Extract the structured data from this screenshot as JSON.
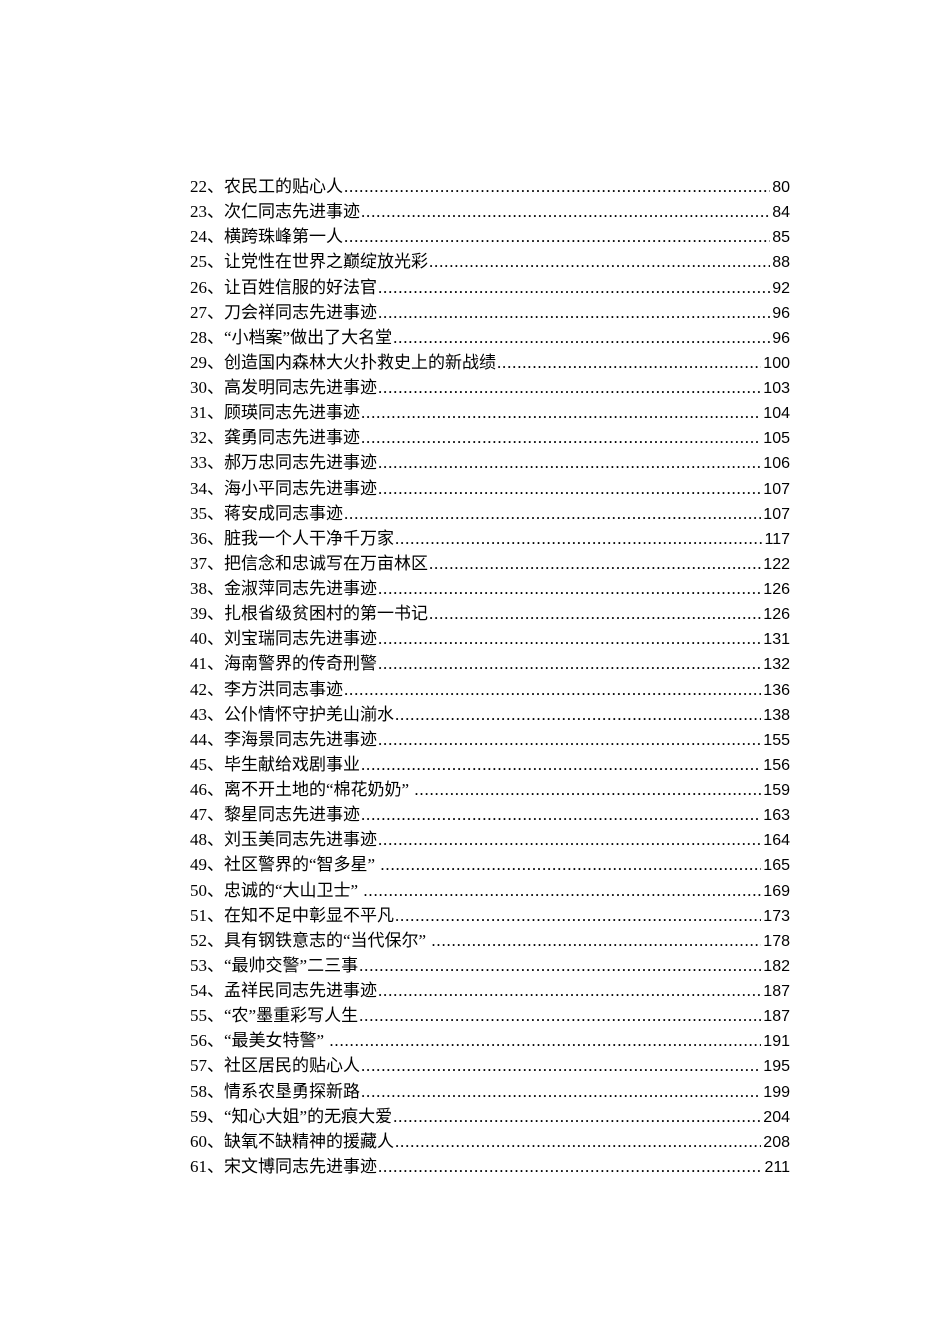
{
  "page": {
    "background_color": "#ffffff",
    "text_color": "#000000",
    "kind": "table-of-contents"
  },
  "toc": {
    "number_separator": "、",
    "entries": [
      {
        "num": "22、",
        "title": "农民工的贴心人",
        "page": "80"
      },
      {
        "num": "23、",
        "title": "次仁同志先进事迹",
        "page": "84"
      },
      {
        "num": "24、",
        "title": "横跨珠峰第一人",
        "page": "85"
      },
      {
        "num": "25、",
        "title": "让党性在世界之巅绽放光彩",
        "page": "88"
      },
      {
        "num": "26、",
        "title": "让百姓信服的好法官",
        "page": "92"
      },
      {
        "num": "27、",
        "title": "刀会祥同志先进事迹",
        "page": "96"
      },
      {
        "num": "28、",
        "title": "“小档案”做出了大名堂",
        "page": "96"
      },
      {
        "num": "29、",
        "title": "创造国内森林大火扑救史上的新战绩",
        "page": "100"
      },
      {
        "num": "30、",
        "title": "高发明同志先进事迹",
        "page": "103"
      },
      {
        "num": "31、",
        "title": "顾瑛同志先进事迹",
        "page": "104"
      },
      {
        "num": "32、",
        "title": "龚勇同志先进事迹",
        "page": "105"
      },
      {
        "num": "33、",
        "title": "郝万忠同志先进事迹",
        "page": "106"
      },
      {
        "num": "34、",
        "title": "海小平同志先进事迹",
        "page": "107"
      },
      {
        "num": "35、",
        "title": "蒋安成同志事迹",
        "page": "107"
      },
      {
        "num": "36、",
        "title": "脏我一个人干净千万家",
        "page": "117"
      },
      {
        "num": "37、",
        "title": "把信念和忠诚写在万亩林区",
        "page": "122"
      },
      {
        "num": "38、",
        "title": "金淑萍同志先进事迹",
        "page": "126"
      },
      {
        "num": "39、",
        "title": "扎根省级贫困村的第一书记",
        "page": "126"
      },
      {
        "num": "40、",
        "title": "刘宝瑞同志先进事迹",
        "page": "131"
      },
      {
        "num": "41、",
        "title": "海南警界的传奇刑警",
        "page": "132"
      },
      {
        "num": "42、",
        "title": "李方洪同志事迹",
        "page": "136"
      },
      {
        "num": "43、",
        "title": "公仆情怀守护羌山湔水",
        "page": "138"
      },
      {
        "num": "44、",
        "title": "李海景同志先进事迹",
        "page": "155"
      },
      {
        "num": "45、",
        "title": "毕生献给戏剧事业",
        "page": "156"
      },
      {
        "num": "46、",
        "title": "离不开土地的“棉花奶奶” ",
        "page": "159"
      },
      {
        "num": "47、",
        "title": "黎星同志先进事迹",
        "page": "163"
      },
      {
        "num": "48、",
        "title": "刘玉美同志先进事迹",
        "page": "164"
      },
      {
        "num": "49、",
        "title": "社区警界的“智多星” ",
        "page": "165"
      },
      {
        "num": "50、",
        "title": "忠诚的“大山卫士” ",
        "page": "169"
      },
      {
        "num": "51、",
        "title": "在知不足中彰显不平凡",
        "page": "173"
      },
      {
        "num": "52、",
        "title": "具有钢铁意志的“当代保尔” ",
        "page": "178"
      },
      {
        "num": "53、",
        "title": "“最帅交警”二三事",
        "page": "182"
      },
      {
        "num": "54、",
        "title": "孟祥民同志先进事迹",
        "page": "187"
      },
      {
        "num": "55、",
        "title": "“农”墨重彩写人生",
        "page": "187"
      },
      {
        "num": "56、",
        "title": "“最美女特警” ",
        "page": "191"
      },
      {
        "num": "57、",
        "title": "社区居民的贴心人",
        "page": "195"
      },
      {
        "num": "58、",
        "title": "情系农垦勇探新路",
        "page": "199"
      },
      {
        "num": "59、",
        "title": "“知心大姐”的无痕大爱",
        "page": "204"
      },
      {
        "num": "60、",
        "title": "缺氧不缺精神的援藏人",
        "page": "208"
      },
      {
        "num": "61、",
        "title": "宋文博同志先进事迹",
        "page": "211"
      }
    ]
  }
}
